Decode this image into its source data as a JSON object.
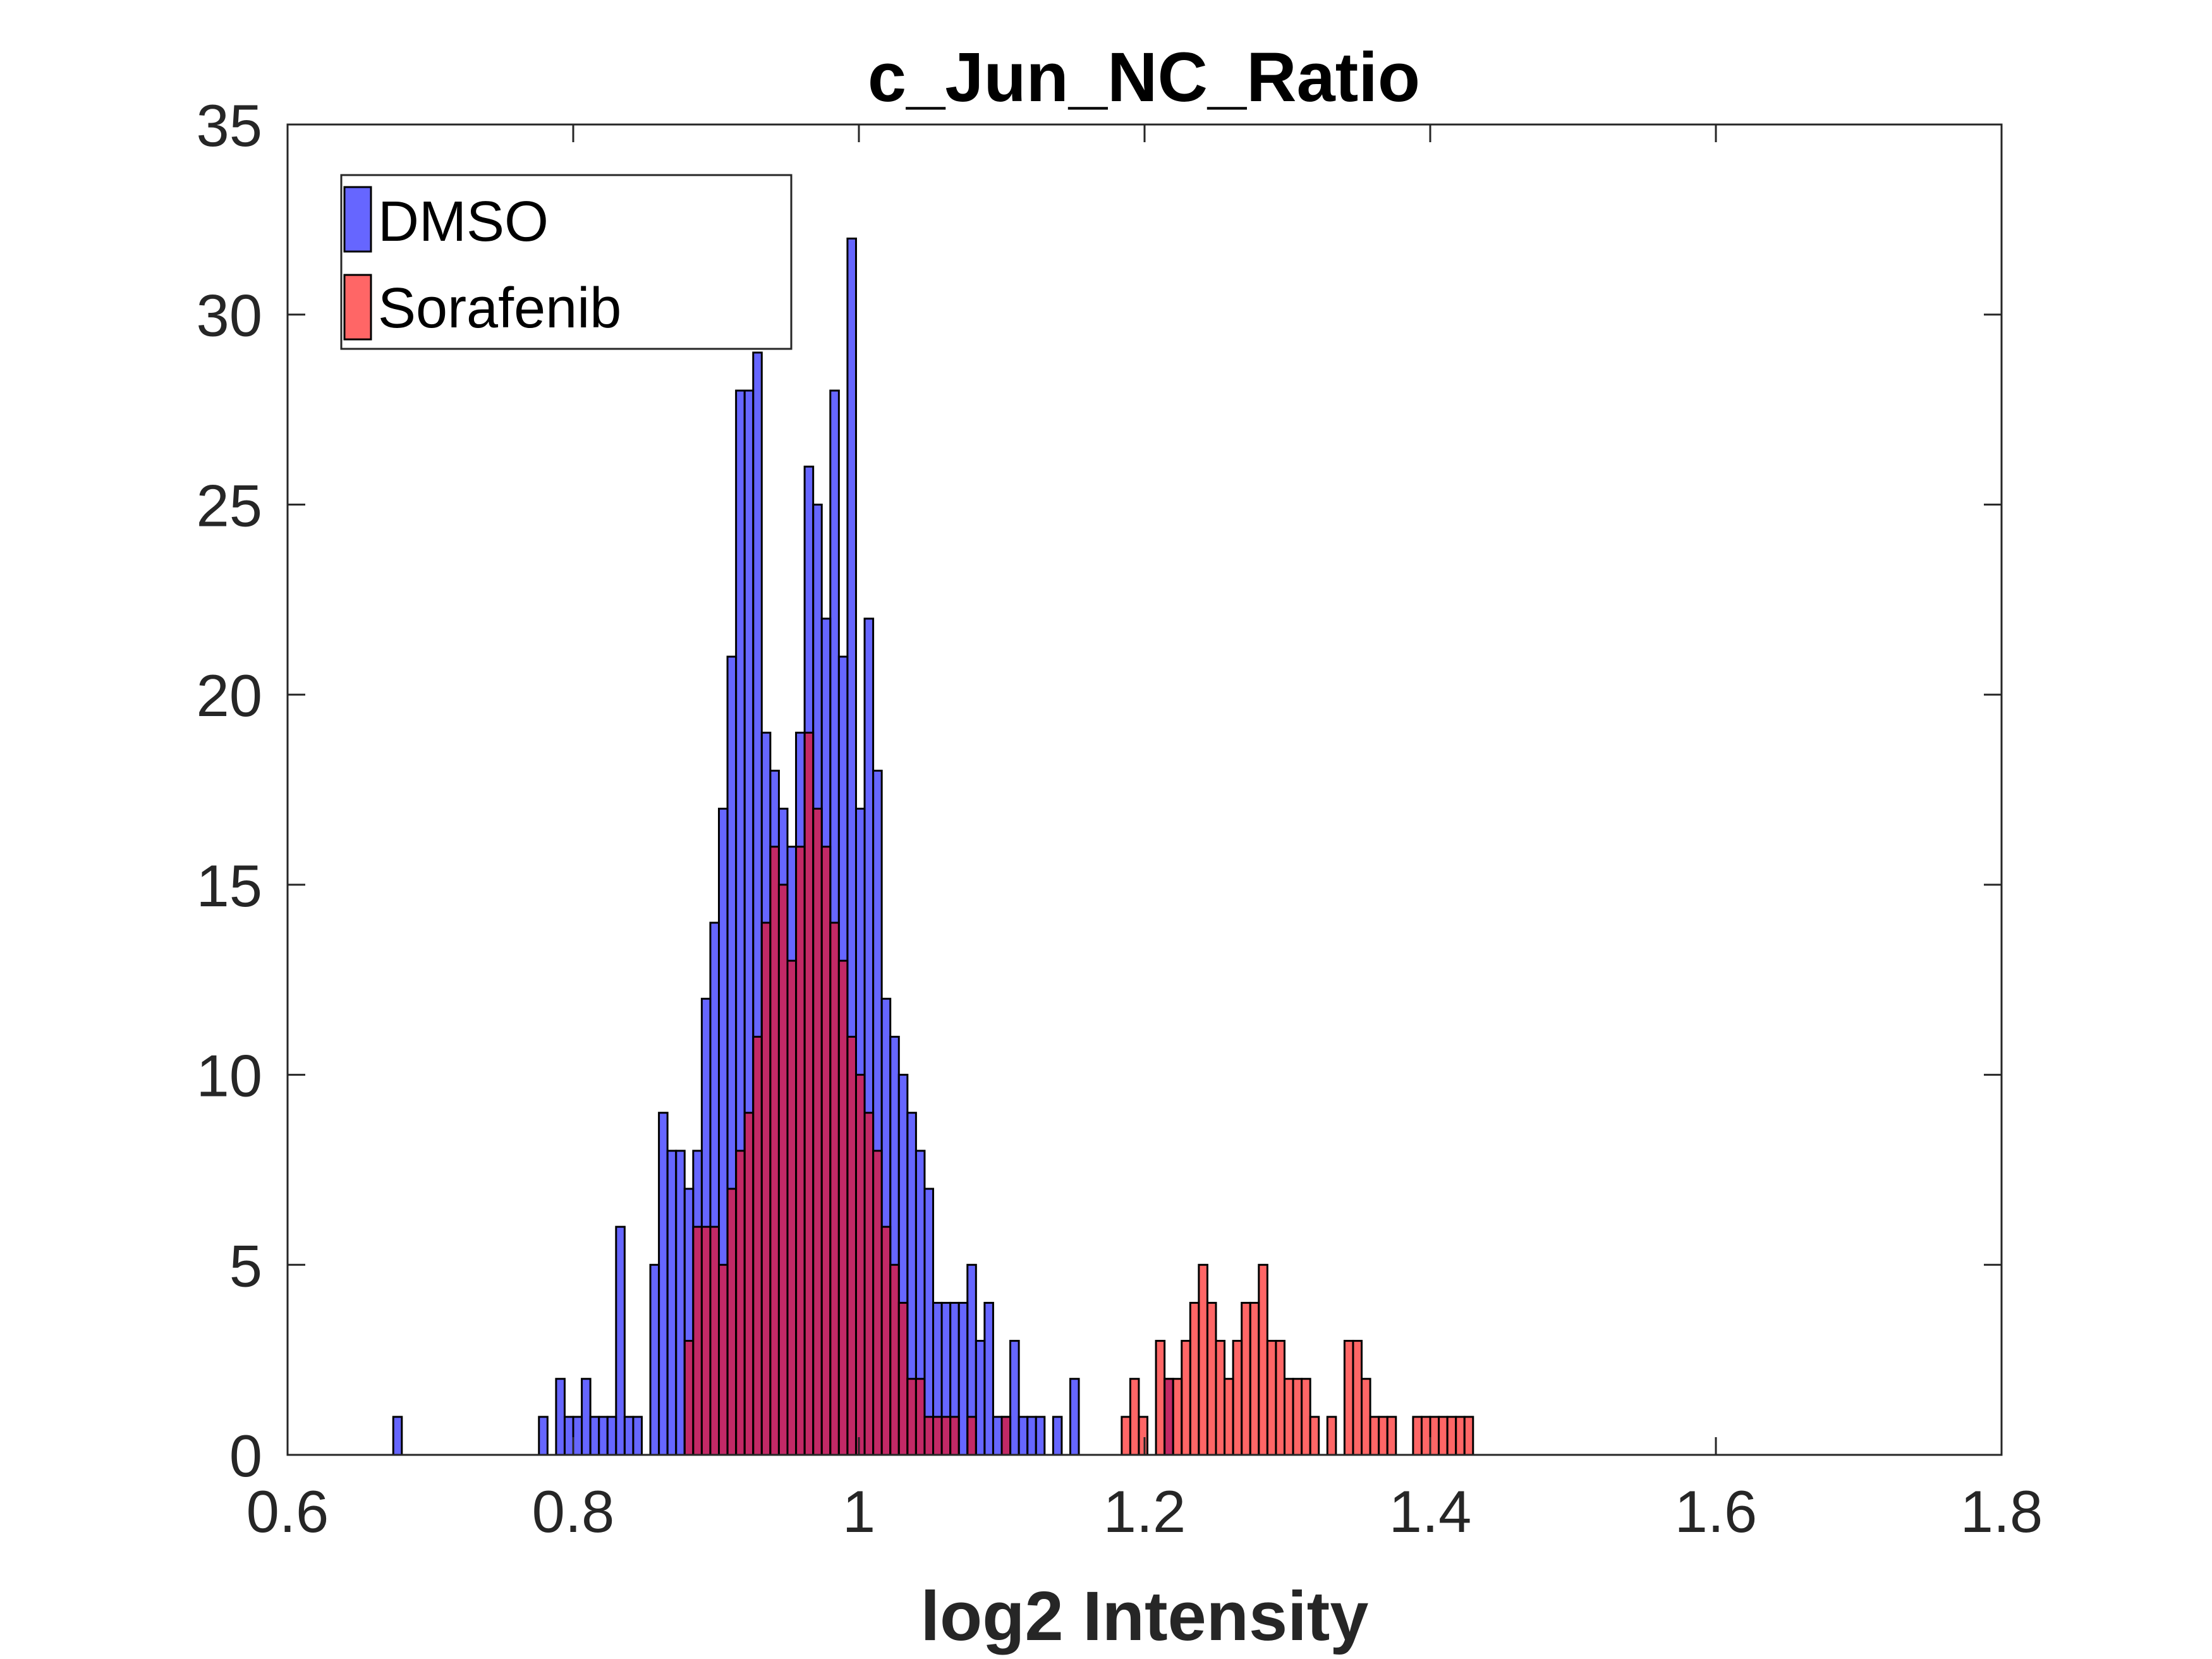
{
  "chart_data": {
    "type": "bar",
    "subtype": "overlaid-histogram",
    "title": "c_Jun_NC_Ratio",
    "xlabel": "log2 Intensity",
    "ylabel": "",
    "xlim": [
      0.6,
      1.8
    ],
    "ylim": [
      0,
      35
    ],
    "xticks": [
      "0.6",
      "0.8",
      "1",
      "1.2",
      "1.4",
      "1.6",
      "1.8"
    ],
    "yticks": [
      "0",
      "5",
      "10",
      "15",
      "20",
      "25",
      "30",
      "35"
    ],
    "legend": {
      "placement": "top-left",
      "box": true
    },
    "grid": false,
    "series": [
      {
        "name": "DMSO",
        "color": "#0000FF",
        "opacity": 0.6,
        "bin_width": 0.006,
        "bin_edges_start": 0.674,
        "counts": [
          1,
          0,
          0,
          0,
          0,
          0,
          0,
          0,
          0,
          0,
          0,
          0,
          0,
          0,
          0,
          0,
          0,
          1,
          0,
          2,
          1,
          1,
          2,
          1,
          1,
          1,
          6,
          1,
          1,
          0,
          5,
          9,
          8,
          8,
          7,
          8,
          12,
          14,
          17,
          21,
          28,
          28,
          29,
          19,
          18,
          17,
          16,
          19,
          26,
          25,
          22,
          28,
          21,
          32,
          17,
          22,
          18,
          12,
          11,
          10,
          9,
          8,
          7,
          4,
          4,
          4,
          4,
          5,
          3,
          4,
          1,
          1,
          3,
          1,
          1,
          1,
          0,
          1,
          0,
          2,
          0,
          0,
          0,
          0,
          0,
          0,
          0,
          0,
          0,
          0,
          2,
          0,
          0,
          0,
          0,
          0,
          0
        ]
      },
      {
        "name": "Sorafenib",
        "color": "#FF0000",
        "opacity": 0.6,
        "bin_width": 0.006,
        "bin_edges_start": 0.674,
        "counts": [
          0,
          0,
          0,
          0,
          0,
          0,
          0,
          0,
          0,
          0,
          0,
          0,
          0,
          0,
          0,
          0,
          0,
          0,
          0,
          0,
          0,
          0,
          0,
          0,
          0,
          0,
          0,
          0,
          0,
          0,
          0,
          0,
          0,
          0,
          3,
          6,
          6,
          6,
          5,
          7,
          8,
          9,
          11,
          14,
          16,
          15,
          13,
          16,
          19,
          17,
          16,
          14,
          13,
          11,
          10,
          9,
          8,
          6,
          5,
          4,
          2,
          2,
          1,
          1,
          1,
          1,
          0,
          1,
          0,
          0,
          0,
          1,
          0,
          0,
          0,
          0,
          0,
          0,
          0,
          0,
          0,
          0,
          0,
          0,
          0,
          1,
          2,
          1,
          0,
          3,
          2,
          2,
          3,
          4,
          5,
          4,
          3,
          2,
          3,
          4,
          4,
          5,
          3,
          3,
          2,
          2,
          2,
          1,
          0,
          1,
          0,
          3,
          3,
          2,
          1,
          1,
          1,
          0,
          0,
          1,
          1,
          1,
          1,
          1,
          1,
          1
        ]
      }
    ]
  }
}
